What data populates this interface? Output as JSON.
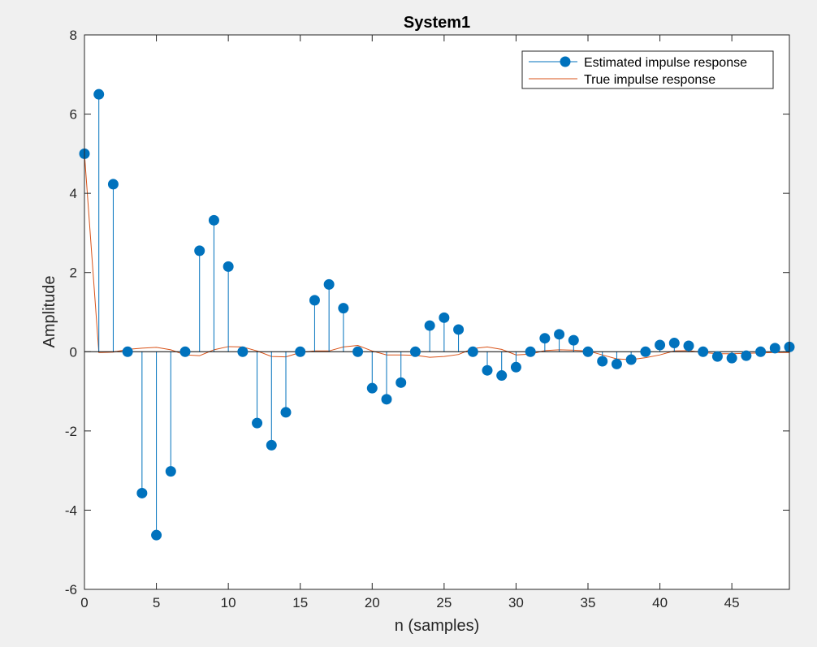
{
  "chart_data": {
    "type": "stem",
    "title": "System1",
    "xlabel": "n (samples)",
    "ylabel": "Amplitude",
    "xlim": [
      0,
      49
    ],
    "ylim": [
      -6,
      8
    ],
    "xticks": [
      0,
      5,
      10,
      15,
      20,
      25,
      30,
      35,
      40,
      45
    ],
    "yticks": [
      -6,
      -4,
      -2,
      0,
      2,
      4,
      6,
      8
    ],
    "grid": false,
    "legend_position": "top-right",
    "series": [
      {
        "name": "Estimated impulse response",
        "style": "stem",
        "color": "#0072bd",
        "x": [
          0,
          1,
          2,
          3,
          4,
          5,
          6,
          7,
          8,
          9,
          10,
          11,
          12,
          13,
          14,
          15,
          16,
          17,
          18,
          19,
          20,
          21,
          22,
          23,
          24,
          25,
          26,
          27,
          28,
          29,
          30,
          31,
          32,
          33,
          34,
          35,
          36,
          37,
          38,
          39,
          40,
          41,
          42,
          43,
          44,
          45,
          46,
          47,
          48,
          49
        ],
        "values": [
          5.0,
          6.5,
          4.23,
          0.0,
          -3.57,
          -4.63,
          -3.02,
          0.0,
          2.55,
          3.32,
          2.15,
          0.0,
          -1.8,
          -2.36,
          -1.53,
          0.0,
          1.3,
          1.7,
          1.1,
          0.0,
          -0.92,
          -1.2,
          -0.78,
          0.0,
          0.66,
          0.86,
          0.56,
          0.0,
          -0.47,
          -0.6,
          -0.39,
          0.0,
          0.34,
          0.44,
          0.29,
          0.0,
          -0.24,
          -0.31,
          -0.2,
          0.0,
          0.17,
          0.22,
          0.15,
          0.0,
          -0.12,
          -0.16,
          -0.1,
          0.0,
          0.09,
          0.12
        ]
      },
      {
        "name": "True impulse response",
        "style": "line",
        "color": "#d95319",
        "x": [
          0,
          1,
          2,
          3,
          4,
          5,
          6,
          7,
          8,
          9,
          10,
          11,
          12,
          13,
          14,
          15,
          16,
          17,
          18,
          19,
          20,
          21,
          22,
          23,
          24,
          25,
          26,
          27,
          28,
          29,
          30,
          31,
          32,
          33,
          34,
          35,
          36,
          37,
          38,
          39,
          40,
          41,
          42,
          43,
          44,
          45,
          46,
          47,
          48,
          49
        ],
        "values": [
          5.0,
          -0.02,
          -0.01,
          0.06,
          0.09,
          0.11,
          0.05,
          -0.08,
          -0.1,
          0.05,
          0.13,
          0.12,
          0.02,
          -0.12,
          -0.13,
          -0.02,
          0.02,
          0.02,
          0.12,
          0.16,
          0.02,
          -0.08,
          -0.08,
          -0.09,
          -0.14,
          -0.12,
          -0.07,
          0.08,
          0.12,
          0.06,
          -0.08,
          -0.06,
          0.03,
          0.05,
          0.04,
          0.02,
          -0.08,
          -0.18,
          -0.2,
          -0.15,
          -0.08,
          0.02,
          0.03,
          -0.02,
          -0.05,
          -0.05,
          -0.04,
          -0.03,
          -0.02,
          -0.02
        ]
      }
    ]
  }
}
